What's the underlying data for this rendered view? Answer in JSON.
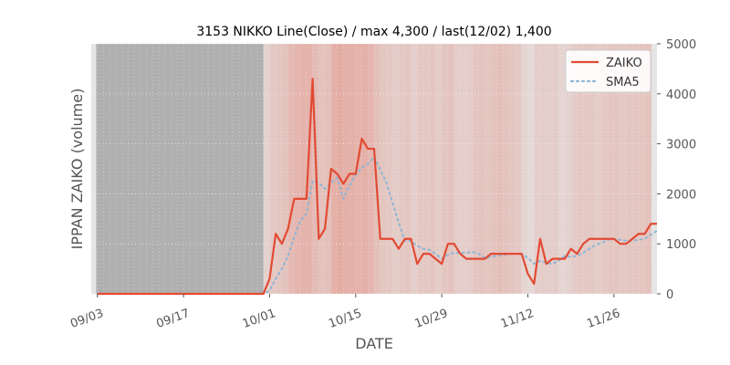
{
  "chart_data": {
    "type": "line",
    "title": "3153 NIKKO Line(Close) / max 4,300 / last(12/02) 1,400",
    "xlabel": "DATE",
    "ylabel": "IPPAN ZAIKO (volume)",
    "ylim": [
      0,
      5000
    ],
    "yticks": [
      0,
      1000,
      2000,
      3000,
      4000,
      5000
    ],
    "ytick_labels": [
      "0",
      "1000",
      "2000",
      "3000",
      "4000",
      "5000"
    ],
    "xlim": [
      "2018-09-02",
      "2018-12-03"
    ],
    "xticks": [
      "2018-09-03",
      "2018-09-17",
      "2018-10-01",
      "2018-10-15",
      "2018-10-29",
      "2018-11-12",
      "2018-11-26"
    ],
    "xtick_labels": [
      "09/03",
      "09/17",
      "10/01",
      "10/15",
      "10/29",
      "11/12",
      "11/26"
    ],
    "grid": true,
    "legend": "top-right",
    "series": [
      {
        "name": "ZAIKO",
        "color": "#e24a33",
        "style": "solid",
        "points": [
          [
            "2018-09-03",
            0
          ],
          [
            "2018-09-30",
            0
          ],
          [
            "2018-10-01",
            300
          ],
          [
            "2018-10-02",
            1200
          ],
          [
            "2018-10-03",
            1000
          ],
          [
            "2018-10-04",
            1300
          ],
          [
            "2018-10-05",
            1900
          ],
          [
            "2018-10-06",
            1900
          ],
          [
            "2018-10-07",
            1900
          ],
          [
            "2018-10-08",
            4300
          ],
          [
            "2018-10-09",
            1100
          ],
          [
            "2018-10-10",
            1300
          ],
          [
            "2018-10-11",
            2500
          ],
          [
            "2018-10-12",
            2400
          ],
          [
            "2018-10-13",
            2200
          ],
          [
            "2018-10-14",
            2400
          ],
          [
            "2018-10-15",
            2400
          ],
          [
            "2018-10-16",
            3100
          ],
          [
            "2018-10-17",
            2900
          ],
          [
            "2018-10-18",
            2900
          ],
          [
            "2018-10-19",
            1100
          ],
          [
            "2018-10-20",
            1100
          ],
          [
            "2018-10-21",
            1100
          ],
          [
            "2018-10-22",
            900
          ],
          [
            "2018-10-23",
            1100
          ],
          [
            "2018-10-24",
            1100
          ],
          [
            "2018-10-25",
            600
          ],
          [
            "2018-10-26",
            800
          ],
          [
            "2018-10-27",
            800
          ],
          [
            "2018-10-28",
            700
          ],
          [
            "2018-10-29",
            600
          ],
          [
            "2018-10-30",
            1000
          ],
          [
            "2018-10-31",
            1000
          ],
          [
            "2018-11-01",
            800
          ],
          [
            "2018-11-02",
            700
          ],
          [
            "2018-11-03",
            700
          ],
          [
            "2018-11-04",
            700
          ],
          [
            "2018-11-05",
            700
          ],
          [
            "2018-11-06",
            800
          ],
          [
            "2018-11-07",
            800
          ],
          [
            "2018-11-08",
            800
          ],
          [
            "2018-11-09",
            800
          ],
          [
            "2018-11-10",
            800
          ],
          [
            "2018-11-11",
            800
          ],
          [
            "2018-11-12",
            400
          ],
          [
            "2018-11-13",
            200
          ],
          [
            "2018-11-14",
            1100
          ],
          [
            "2018-11-15",
            600
          ],
          [
            "2018-11-16",
            700
          ],
          [
            "2018-11-17",
            700
          ],
          [
            "2018-11-18",
            700
          ],
          [
            "2018-11-19",
            900
          ],
          [
            "2018-11-20",
            800
          ],
          [
            "2018-11-21",
            1000
          ],
          [
            "2018-11-22",
            1100
          ],
          [
            "2018-11-23",
            1100
          ],
          [
            "2018-11-24",
            1100
          ],
          [
            "2018-11-25",
            1100
          ],
          [
            "2018-11-26",
            1100
          ],
          [
            "2018-11-27",
            1000
          ],
          [
            "2018-11-28",
            1000
          ],
          [
            "2018-11-29",
            1100
          ],
          [
            "2018-11-30",
            1200
          ],
          [
            "2018-12-01",
            1200
          ],
          [
            "2018-12-02",
            1400
          ],
          [
            "2018-12-03",
            1400
          ]
        ]
      },
      {
        "name": "SMA5",
        "color": "#8eb6d4",
        "style": "dotted",
        "points": [
          [
            "2018-09-03",
            0
          ],
          [
            "2018-09-30",
            0
          ],
          [
            "2018-10-01",
            60
          ],
          [
            "2018-10-02",
            300
          ],
          [
            "2018-10-03",
            500
          ],
          [
            "2018-10-04",
            760
          ],
          [
            "2018-10-05",
            1140
          ],
          [
            "2018-10-06",
            1460
          ],
          [
            "2018-10-07",
            1600
          ],
          [
            "2018-10-08",
            2260
          ],
          [
            "2018-10-09",
            2220
          ],
          [
            "2018-10-10",
            2100
          ],
          [
            "2018-10-11",
            2220
          ],
          [
            "2018-10-12",
            2320
          ],
          [
            "2018-10-13",
            1900
          ],
          [
            "2018-10-14",
            2160
          ],
          [
            "2018-10-15",
            2380
          ],
          [
            "2018-10-16",
            2520
          ],
          [
            "2018-10-17",
            2600
          ],
          [
            "2018-10-18",
            2740
          ],
          [
            "2018-10-19",
            2480
          ],
          [
            "2018-10-20",
            2220
          ],
          [
            "2018-10-21",
            1820
          ],
          [
            "2018-10-22",
            1420
          ],
          [
            "2018-10-23",
            1060
          ],
          [
            "2018-10-24",
            1060
          ],
          [
            "2018-10-25",
            960
          ],
          [
            "2018-10-26",
            900
          ],
          [
            "2018-10-27",
            880
          ],
          [
            "2018-10-28",
            800
          ],
          [
            "2018-10-29",
            700
          ],
          [
            "2018-10-30",
            780
          ],
          [
            "2018-10-31",
            820
          ],
          [
            "2018-11-01",
            820
          ],
          [
            "2018-11-02",
            820
          ],
          [
            "2018-11-03",
            840
          ],
          [
            "2018-11-04",
            800
          ],
          [
            "2018-11-05",
            720
          ],
          [
            "2018-11-06",
            740
          ],
          [
            "2018-11-07",
            760
          ],
          [
            "2018-11-08",
            780
          ],
          [
            "2018-11-09",
            800
          ],
          [
            "2018-11-10",
            800
          ],
          [
            "2018-11-11",
            800
          ],
          [
            "2018-11-12",
            720
          ],
          [
            "2018-11-13",
            600
          ],
          [
            "2018-11-14",
            660
          ],
          [
            "2018-11-15",
            620
          ],
          [
            "2018-11-16",
            600
          ],
          [
            "2018-11-17",
            660
          ],
          [
            "2018-11-18",
            760
          ],
          [
            "2018-11-19",
            740
          ],
          [
            "2018-11-20",
            760
          ],
          [
            "2018-11-21",
            820
          ],
          [
            "2018-11-22",
            900
          ],
          [
            "2018-11-23",
            980
          ],
          [
            "2018-11-24",
            1020
          ],
          [
            "2018-11-25",
            1080
          ],
          [
            "2018-11-26",
            1100
          ],
          [
            "2018-11-27",
            1080
          ],
          [
            "2018-11-28",
            1060
          ],
          [
            "2018-11-29",
            1060
          ],
          [
            "2018-11-30",
            1080
          ],
          [
            "2018-12-01",
            1100
          ],
          [
            "2018-12-02",
            1180
          ],
          [
            "2018-12-03",
            1260
          ]
        ]
      }
    ],
    "background_bands": {
      "gray_until": "2018-09-30",
      "gray_color": "#b0b0b0",
      "tint_color": "#e24a33",
      "tint_from": "2018-09-30",
      "tint_opacity": [
        0.12,
        0.18,
        0.2,
        0.22,
        0.28,
        0.3,
        0.32,
        0.32,
        0.26,
        0.22,
        0.24,
        0.34,
        0.36,
        0.34,
        0.34,
        0.32,
        0.34,
        0.3,
        0.24,
        0.2,
        0.18,
        0.16,
        0.18,
        0.2,
        0.14,
        0.18,
        0.18,
        0.2,
        0.16,
        0.2,
        0.22,
        0.16,
        0.14,
        0.16,
        0.2,
        0.22,
        0.2,
        0.22,
        0.24,
        0.22,
        0.2,
        0.18,
        0.1,
        0.08,
        0.14,
        0.16,
        0.14,
        0.16,
        0.1,
        0.12,
        0.16,
        0.18,
        0.18,
        0.18,
        0.16,
        0.18,
        0.2,
        0.2,
        0.18,
        0.2,
        0.2,
        0.2,
        0.22,
        0.22,
        0.2
      ]
    }
  }
}
